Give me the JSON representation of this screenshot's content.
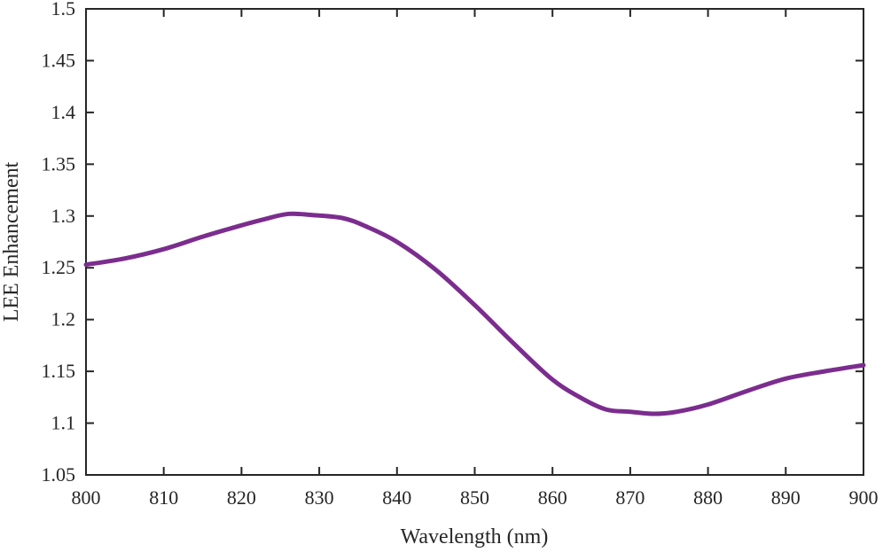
{
  "chart_data": {
    "type": "line",
    "title": "",
    "xlabel": "Wavelength (nm)",
    "ylabel": "LEE Enhancement",
    "xlim": [
      800,
      900
    ],
    "ylim": [
      1.05,
      1.5
    ],
    "xticks": [
      800,
      810,
      820,
      830,
      840,
      850,
      860,
      870,
      880,
      890,
      900
    ],
    "yticks": [
      1.05,
      1.1,
      1.15,
      1.2,
      1.25,
      1.3,
      1.35,
      1.4,
      1.45,
      1.5
    ],
    "xtick_labels": [
      "800",
      "810",
      "820",
      "830",
      "840",
      "850",
      "860",
      "870",
      "880",
      "890",
      "900"
    ],
    "ytick_labels": [
      "1.05",
      "1.1",
      "1.15",
      "1.2",
      "1.25",
      "1.3",
      "1.35",
      "1.4",
      "1.45",
      "1.5"
    ],
    "grid": false,
    "series": [
      {
        "color": "#7b2d8e",
        "x": [
          800,
          805,
          810,
          815,
          820,
          823,
          826,
          829,
          833,
          836,
          840,
          845,
          850,
          855,
          860,
          864,
          867,
          870,
          873,
          876,
          880,
          885,
          890,
          895,
          900
        ],
        "y": [
          1.253,
          1.259,
          1.268,
          1.28,
          1.291,
          1.297,
          1.302,
          1.301,
          1.298,
          1.29,
          1.275,
          1.248,
          1.214,
          1.177,
          1.142,
          1.123,
          1.113,
          1.111,
          1.109,
          1.111,
          1.118,
          1.131,
          1.143,
          1.15,
          1.156
        ]
      }
    ]
  }
}
